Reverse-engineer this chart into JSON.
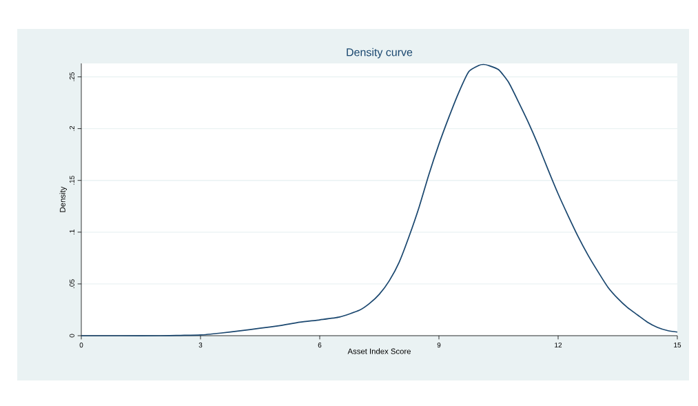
{
  "chart_data": {
    "type": "line",
    "title": "Density curve",
    "xlabel": "Asset Index Score",
    "ylabel": "Density",
    "x": [
      0,
      1,
      2,
      2.5,
      3,
      3.5,
      4,
      4.5,
      5,
      5.5,
      6,
      6.5,
      7,
      7.25,
      7.5,
      7.75,
      8,
      8.25,
      8.5,
      8.75,
      9,
      9.25,
      9.5,
      9.75,
      10,
      10.12,
      10.25,
      10.5,
      10.75,
      11,
      11.25,
      11.5,
      11.75,
      12,
      12.25,
      12.5,
      12.75,
      13,
      13.25,
      13.5,
      13.75,
      14,
      14.25,
      14.5,
      14.75,
      15
    ],
    "series": [
      {
        "color": "#1a476f",
        "values": [
          0,
          0,
          0,
          0.0003,
          0.0007,
          0.0025,
          0.0047,
          0.0072,
          0.0098,
          0.013,
          0.0153,
          0.018,
          0.0246,
          0.031,
          0.04,
          0.053,
          0.071,
          0.096,
          0.124,
          0.156,
          0.185,
          0.211,
          0.235,
          0.255,
          0.261,
          0.262,
          0.261,
          0.257,
          0.245,
          0.226,
          0.206,
          0.184,
          0.16,
          0.137,
          0.116,
          0.096,
          0.078,
          0.062,
          0.047,
          0.036,
          0.027,
          0.02,
          0.013,
          0.008,
          0.005,
          0.0035
        ]
      }
    ],
    "xlim": [
      0,
      15
    ],
    "ylim": [
      0,
      0.263
    ],
    "xticks": [
      0,
      3,
      6,
      9,
      12,
      15
    ],
    "yticks": [
      0,
      {
        "value": 0.05,
        "label": ".05"
      },
      {
        "value": 0.1,
        "label": ".1"
      },
      {
        "value": 0.15,
        "label": ".15"
      },
      {
        "value": 0.2,
        "label": ".2"
      },
      {
        "value": 0.25,
        "label": ".25"
      }
    ],
    "grid": "y",
    "marker": "none",
    "line_style": "solid"
  }
}
